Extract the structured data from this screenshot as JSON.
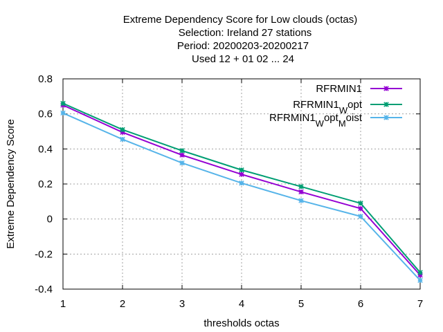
{
  "chart_data": {
    "type": "line",
    "title_lines": [
      "Extreme Dependency Score  for Low clouds (octas)",
      "Selection: Ireland      27 stations",
      "Period: 20200203-20200217",
      "Used  12 + 01 02 ... 24"
    ],
    "xlabel": "thresholds octas",
    "ylabel": "Extreme Dependency Score",
    "x": [
      1,
      2,
      3,
      4,
      5,
      6,
      7
    ],
    "xlim": [
      1,
      7
    ],
    "ylim": [
      -0.4,
      0.8
    ],
    "xticks": [
      1,
      2,
      3,
      4,
      5,
      6,
      7
    ],
    "yticks": [
      -0.4,
      -0.2,
      0,
      0.2,
      0.4,
      0.6,
      0.8
    ],
    "ytick_labels": [
      "-0.4",
      "-0.2",
      "0",
      "0.2",
      "0.4",
      "0.6",
      "0.8"
    ],
    "grid": true,
    "legend_position": "top-right",
    "series": [
      {
        "name": "RFRMIN1",
        "legend_parts": [
          {
            "text": "RFRMIN1",
            "sub": false
          }
        ],
        "color": "#9400d3",
        "values": [
          0.65,
          0.495,
          0.365,
          0.255,
          0.155,
          0.06,
          -0.32
        ]
      },
      {
        "name": "RFRMIN1_Wopt",
        "legend_parts": [
          {
            "text": "RFRMIN1",
            "sub": false
          },
          {
            "text": "W",
            "sub": true
          },
          {
            "text": "opt",
            "sub": false
          }
        ],
        "color": "#009e73",
        "values": [
          0.66,
          0.51,
          0.39,
          0.28,
          0.185,
          0.09,
          -0.305
        ]
      },
      {
        "name": "RFRMIN1_Wopt_Moist",
        "legend_parts": [
          {
            "text": "RFRMIN1",
            "sub": false
          },
          {
            "text": "W",
            "sub": true
          },
          {
            "text": "opt",
            "sub": false
          },
          {
            "text": "M",
            "sub": true
          },
          {
            "text": "oist",
            "sub": false
          }
        ],
        "color": "#56b4e9",
        "values": [
          0.605,
          0.455,
          0.32,
          0.205,
          0.105,
          0.015,
          -0.35
        ]
      }
    ]
  }
}
